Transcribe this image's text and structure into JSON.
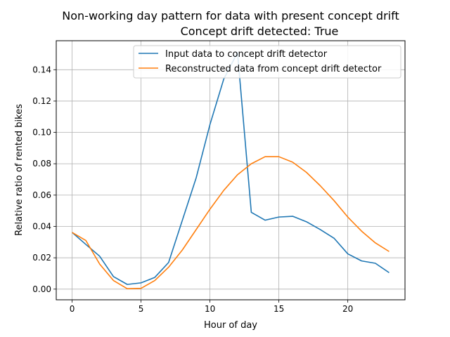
{
  "chart_data": {
    "type": "line",
    "title": "Non-working day pattern for data with present concept drift",
    "subtitle": "Concept drift detected: True",
    "xlabel": "Hour of day",
    "ylabel": "Relative ratio of rented bikes",
    "xlim": [
      -1.15,
      24.15
    ],
    "ylim": [
      -0.0068,
      0.1585
    ],
    "x_ticks": [
      0,
      5,
      10,
      15,
      20
    ],
    "y_ticks": [
      0.0,
      0.02,
      0.04,
      0.06,
      0.08,
      0.1,
      0.12,
      0.14
    ],
    "y_tick_labels": [
      "0.00",
      "0.02",
      "0.04",
      "0.06",
      "0.08",
      "0.10",
      "0.12",
      "0.14"
    ],
    "grid": true,
    "legend_position": "top-right",
    "x": [
      0,
      1,
      2,
      3,
      4,
      5,
      6,
      7,
      8,
      9,
      10,
      11,
      12,
      13,
      14,
      15,
      16,
      17,
      18,
      19,
      20,
      21,
      22,
      23
    ],
    "series": [
      {
        "name": "Input data to concept drift detector",
        "color": "#1f77b4",
        "values": [
          0.0362,
          0.0285,
          0.021,
          0.008,
          0.003,
          0.004,
          0.0075,
          0.017,
          0.044,
          0.071,
          0.105,
          0.134,
          0.151,
          0.049,
          0.044,
          0.046,
          0.0465,
          0.043,
          0.038,
          0.0325,
          0.0225,
          0.018,
          0.0165,
          0.0105
        ]
      },
      {
        "name": "Reconstructed data from concept drift detector",
        "color": "#ff7f0e",
        "values": [
          0.0362,
          0.031,
          0.016,
          0.0055,
          0.0003,
          0.0005,
          0.0055,
          0.014,
          0.025,
          0.038,
          0.051,
          0.063,
          0.073,
          0.08,
          0.0845,
          0.0845,
          0.081,
          0.0745,
          0.066,
          0.0565,
          0.046,
          0.037,
          0.0295,
          0.024
        ]
      }
    ]
  }
}
